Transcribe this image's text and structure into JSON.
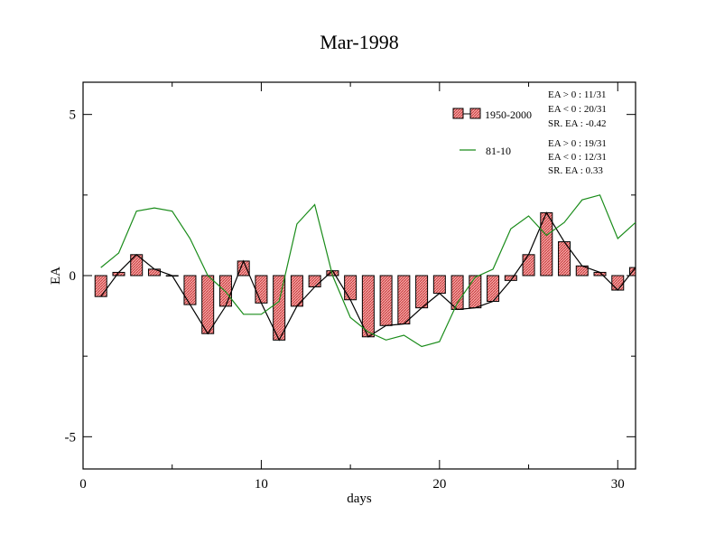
{
  "chart_data": {
    "type": "bar",
    "title": "Mar-1998",
    "xlabel": "days",
    "ylabel": "EA",
    "xlim": [
      0,
      31
    ],
    "ylim": [
      -6,
      6
    ],
    "x_ticks": [
      0,
      10,
      20,
      30
    ],
    "y_ticks": [
      -5,
      0,
      5
    ],
    "x_tick_labels": [
      "0",
      "10",
      "20",
      "30"
    ],
    "y_tick_labels": [
      "-5",
      "0",
      "5"
    ],
    "grid": false,
    "legend_position": "top-right",
    "x": [
      1,
      2,
      3,
      4,
      5,
      6,
      7,
      8,
      9,
      10,
      11,
      12,
      13,
      14,
      15,
      16,
      17,
      18,
      19,
      20,
      21,
      22,
      23,
      24,
      25,
      26,
      27,
      28,
      29,
      30,
      31
    ],
    "series": [
      {
        "name": "1950-2000",
        "kind": "bar+line",
        "color": "#e87b7b",
        "values": [
          -0.65,
          0.1,
          0.65,
          0.2,
          0.0,
          -0.9,
          -1.8,
          -0.95,
          0.45,
          -0.85,
          -2.0,
          -0.95,
          -0.35,
          0.15,
          -0.75,
          -1.9,
          -1.55,
          -1.5,
          -1.0,
          -0.55,
          -1.05,
          -1.0,
          -0.8,
          -0.15,
          0.65,
          1.95,
          1.05,
          0.3,
          0.1,
          -0.45,
          0.25
        ]
      },
      {
        "name": "81-10",
        "kind": "line",
        "color": "#1a8c1a",
        "values": [
          0.25,
          0.7,
          2.0,
          2.1,
          2.0,
          1.15,
          0.0,
          -0.5,
          -1.2,
          -1.2,
          -0.8,
          1.6,
          2.2,
          0.0,
          -1.3,
          -1.75,
          -2.0,
          -1.85,
          -2.2,
          -2.05,
          -0.85,
          -0.05,
          0.2,
          1.45,
          1.85,
          1.25,
          1.65,
          2.35,
          2.5,
          1.15,
          1.65
        ]
      }
    ],
    "stats": [
      [
        "EA > 0 : 11/31",
        "EA < 0 : 20/31",
        "SR. EA : -0.42"
      ],
      [
        "EA > 0 : 19/31",
        "EA < 0 : 12/31",
        "SR. EA :  0.33"
      ]
    ]
  }
}
